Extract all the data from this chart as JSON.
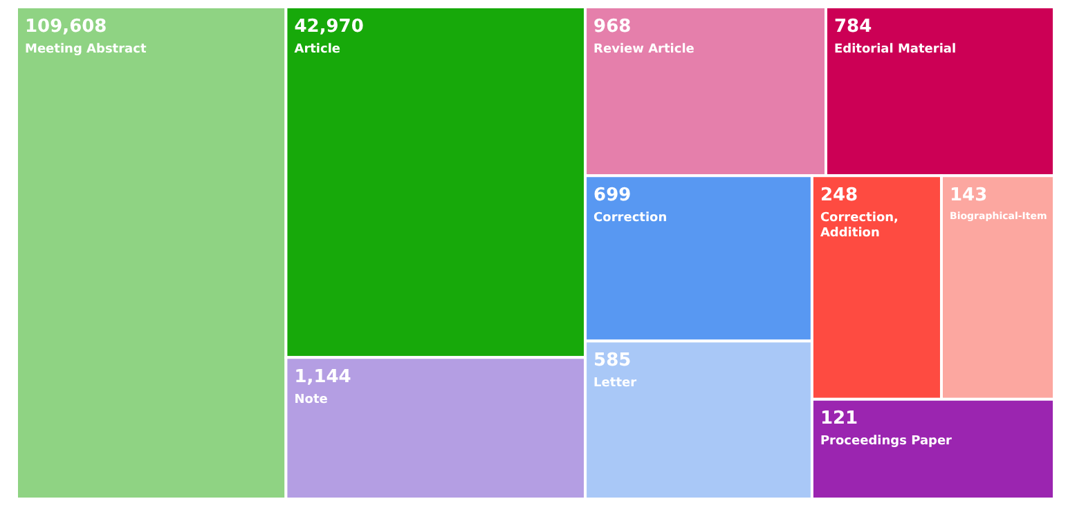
{
  "chart_data": {
    "type": "other",
    "categories": [
      "Meeting Abstract",
      "Article",
      "Note",
      "Review Article",
      "Editorial Material",
      "Correction",
      "Letter",
      "Correction, Addition",
      "Biographical-Item",
      "Proceedings Paper"
    ],
    "values": [
      109608,
      42970,
      1144,
      968,
      784,
      699,
      585,
      248,
      143,
      121
    ],
    "value_labels": [
      "109,608",
      "42,970",
      "1,144",
      "968",
      "784",
      "699",
      "585",
      "248",
      "143",
      "121"
    ],
    "colors": [
      "#8fd383",
      "#17a90a",
      "#b49ee3",
      "#e57fab",
      "#cc0055",
      "#5898f2",
      "#a9c8f7",
      "#fe4b41",
      "#fca7a0",
      "#9b25b0"
    ]
  }
}
